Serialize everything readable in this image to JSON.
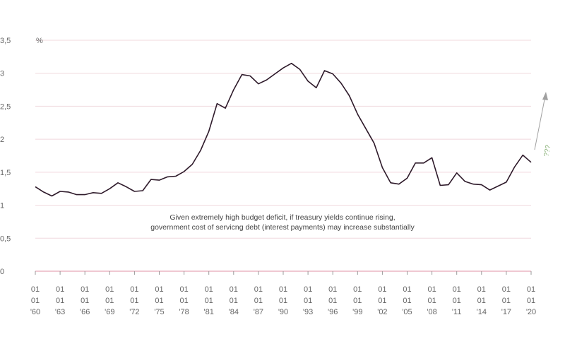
{
  "chart_data": {
    "type": "line",
    "unit_label": "%",
    "ylim": [
      0,
      3.5
    ],
    "yticks": [
      0,
      0.5,
      1,
      1.5,
      2,
      2.5,
      3,
      3.5
    ],
    "ytick_labels": [
      "0",
      "0,5",
      "1",
      "1,5",
      "2",
      "2,5",
      "3",
      "3,5"
    ],
    "xlim": [
      1960,
      2020
    ],
    "x_tick_labels": [
      {
        "year": 1960,
        "lines": [
          "01",
          "01",
          "'60"
        ]
      },
      {
        "year": 1963,
        "lines": [
          "01",
          "01",
          "'63"
        ]
      },
      {
        "year": 1966,
        "lines": [
          "01",
          "01",
          "'66"
        ]
      },
      {
        "year": 1969,
        "lines": [
          "01",
          "01",
          "'69"
        ]
      },
      {
        "year": 1972,
        "lines": [
          "01",
          "01",
          "'72"
        ]
      },
      {
        "year": 1975,
        "lines": [
          "01",
          "01",
          "'75"
        ]
      },
      {
        "year": 1978,
        "lines": [
          "01",
          "01",
          "'78"
        ]
      },
      {
        "year": 1981,
        "lines": [
          "01",
          "01",
          "'81"
        ]
      },
      {
        "year": 1984,
        "lines": [
          "01",
          "01",
          "'84"
        ]
      },
      {
        "year": 1987,
        "lines": [
          "01",
          "01",
          "'87"
        ]
      },
      {
        "year": 1990,
        "lines": [
          "01",
          "01",
          "'90"
        ]
      },
      {
        "year": 1993,
        "lines": [
          "01",
          "01",
          "'93"
        ]
      },
      {
        "year": 1996,
        "lines": [
          "01",
          "01",
          "'96"
        ]
      },
      {
        "year": 1999,
        "lines": [
          "01",
          "01",
          "'99"
        ]
      },
      {
        "year": 2002,
        "lines": [
          "01",
          "01",
          "'02"
        ]
      },
      {
        "year": 2005,
        "lines": [
          "01",
          "01",
          "'05"
        ]
      },
      {
        "year": 2008,
        "lines": [
          "01",
          "01",
          "'08"
        ]
      },
      {
        "year": 2011,
        "lines": [
          "01",
          "01",
          "'11"
        ]
      },
      {
        "year": 2014,
        "lines": [
          "01",
          "01",
          "'14"
        ]
      },
      {
        "year": 2017,
        "lines": [
          "01",
          "01",
          "'17"
        ]
      },
      {
        "year": 2020,
        "lines": [
          "01",
          "01",
          "'20"
        ]
      }
    ],
    "grid": true,
    "series": [
      {
        "color": "#2e1a2a",
        "x": [
          1960,
          1961,
          1962,
          1963,
          1964,
          1965,
          1966,
          1967,
          1968,
          1969,
          1970,
          1971,
          1972,
          1973,
          1974,
          1975,
          1976,
          1977,
          1978,
          1979,
          1980,
          1981,
          1982,
          1983,
          1984,
          1985,
          1986,
          1987,
          1988,
          1989,
          1990,
          1991,
          1992,
          1993,
          1994,
          1995,
          1996,
          1997,
          1998,
          1999,
          2000,
          2001,
          2002,
          2003,
          2004,
          2005,
          2006,
          2007,
          2008,
          2009,
          2010,
          2011,
          2012,
          2013,
          2014,
          2015,
          2016,
          2017,
          2018,
          2019,
          2020
        ],
        "y": [
          1.28,
          1.2,
          1.14,
          1.21,
          1.2,
          1.16,
          1.16,
          1.19,
          1.18,
          1.25,
          1.34,
          1.28,
          1.21,
          1.22,
          1.39,
          1.38,
          1.43,
          1.44,
          1.51,
          1.62,
          1.83,
          2.12,
          2.54,
          2.47,
          2.75,
          2.98,
          2.96,
          2.84,
          2.9,
          2.99,
          3.08,
          3.15,
          3.06,
          2.88,
          2.78,
          3.04,
          2.99,
          2.85,
          2.66,
          2.38,
          2.16,
          1.94,
          1.57,
          1.34,
          1.32,
          1.41,
          1.64,
          1.64,
          1.72,
          1.3,
          1.31,
          1.49,
          1.36,
          1.32,
          1.31,
          1.23,
          1.29,
          1.35,
          1.58,
          1.76,
          1.65
        ]
      }
    ],
    "annotation": {
      "lines": [
        "Given extremely high budget deficit, if treasury yields continue rising,",
        "government cost of servicng debt (interest payments) may increase substantially"
      ]
    },
    "arrow_label": "???",
    "colors": {
      "grid": "#f0d8dd",
      "baseline": "#e8a8b6",
      "line": "#2e1a2a",
      "arrow": "#a0a0a0",
      "question": "#8bb37a"
    }
  }
}
